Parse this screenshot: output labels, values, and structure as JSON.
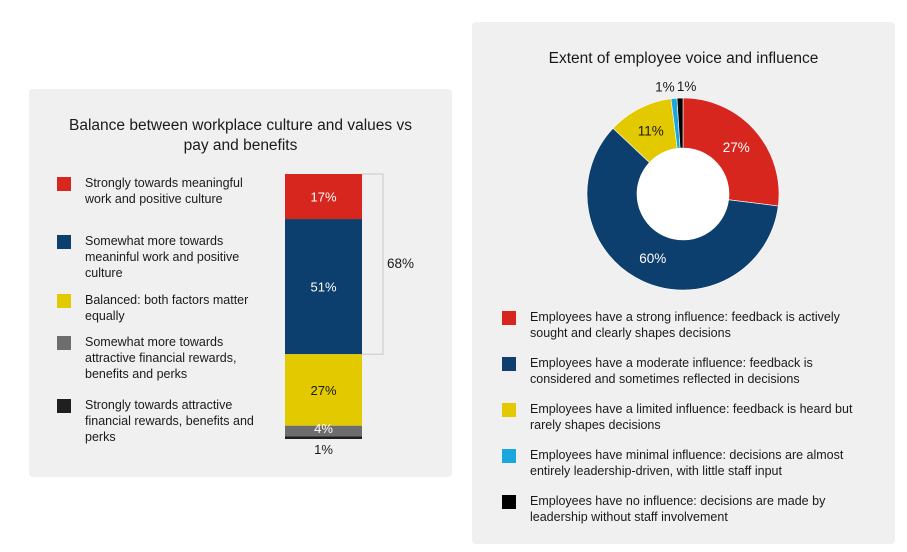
{
  "chart_data": [
    {
      "type": "bar",
      "title": "Balance between workplace culture and values vs pay and benefits",
      "stacked": true,
      "categories": [
        "Strongly towards meaningful work and positive culture",
        "Somewhat more towards meaninful work and positive culture",
        "Balanced: both factors matter equally",
        "Somewhat more towards attractive financial rewards, benefits and perks",
        "Strongly towards attractive financial rewards, benefits and perks"
      ],
      "values": [
        17,
        51,
        27,
        4,
        1
      ],
      "labels": [
        "17%",
        "51%",
        "27%",
        "4%",
        "1%"
      ],
      "colors": [
        "#d7261e",
        "#0c3f6d",
        "#e2c900",
        "#6d6d6d",
        "#1f1f1f"
      ],
      "label_colors": [
        "#ffffff",
        "#ffffff",
        "#1a1a1a",
        "#ffffff",
        "#1a1a1a"
      ],
      "bracket_label": "68%",
      "legend_placement": "left"
    },
    {
      "type": "pie",
      "donut": true,
      "title": "Extent of employee voice and influence",
      "categories": [
        "Employees have a strong influence: feedback is actively sought and clearly shapes decisions",
        "Employees have a moderate influence: feedback is considered and sometimes reflected in decisions",
        "Employees have a limited influence: feedback is heard but rarely shapes decisions",
        "Employees have minimal influence: decisions are almost entirely leadership-driven, with little staff input",
        "Employees have no influence: decisions are made by leadership without staff involvement"
      ],
      "values": [
        27,
        60,
        11,
        1,
        1
      ],
      "labels": [
        "27%",
        "60%",
        "11%",
        "1%",
        "1%"
      ],
      "colors": [
        "#d7261e",
        "#0c3f6d",
        "#e2c900",
        "#1aa7dd",
        "#000000"
      ],
      "label_colors": [
        "#ffffff",
        "#ffffff",
        "#1a1a1a",
        "#1a1a1a",
        "#1a1a1a"
      ],
      "legend_placement": "bottom"
    }
  ]
}
